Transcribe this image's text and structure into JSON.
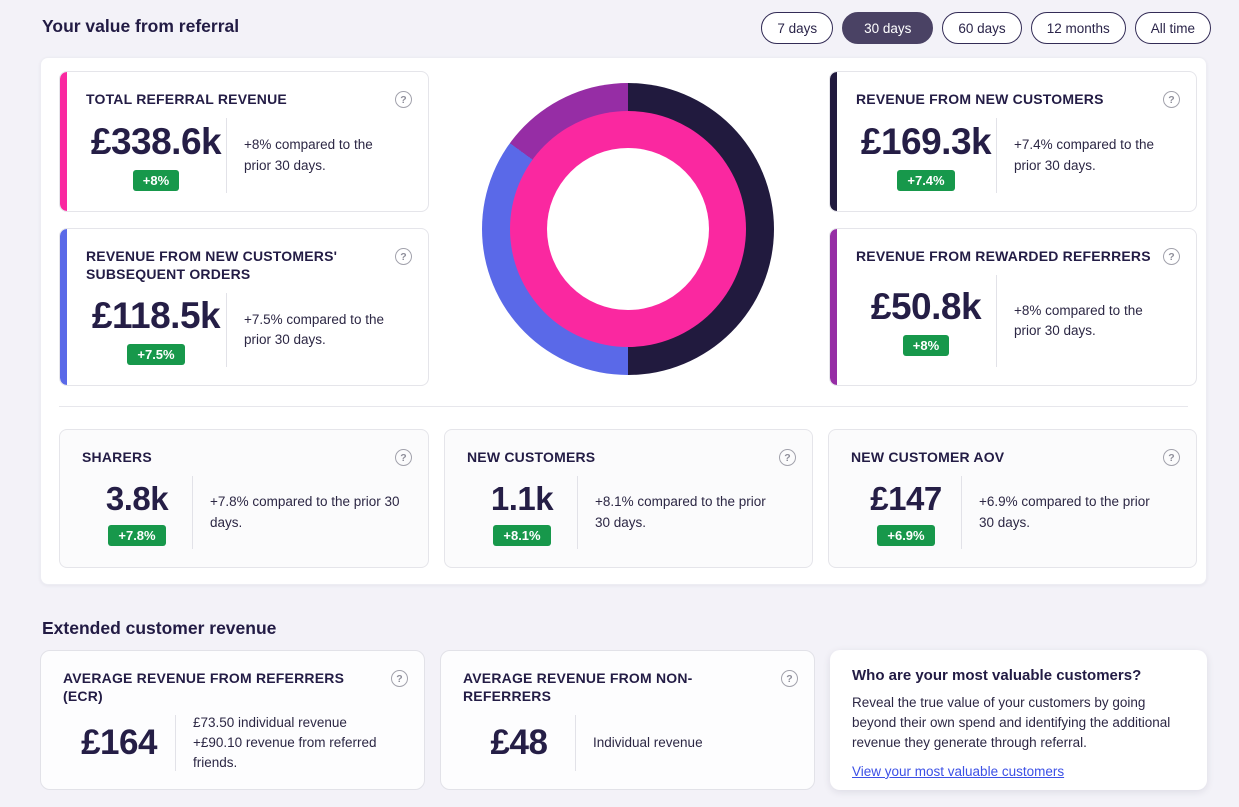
{
  "header": {
    "title": "Your value from referral"
  },
  "filters": {
    "items": [
      {
        "label": "7 days",
        "selected": false
      },
      {
        "label": "30 days",
        "selected": true
      },
      {
        "label": "60 days",
        "selected": false
      },
      {
        "label": "12 months",
        "selected": false
      },
      {
        "label": "All time",
        "selected": false
      }
    ]
  },
  "icons": {
    "help": "?"
  },
  "colors": {
    "page_bg": "#F3F2F8",
    "card_bg": "#FFFFFF",
    "accent_pink": "#FA28A0",
    "accent_navy": "#211A3E",
    "accent_blue": "#5A69E8",
    "accent_purple": "#962DA5",
    "badge_green": "#17984B",
    "text_dark": "#231C45",
    "link_blue": "#3C50E6",
    "pill_selected_bg": "#4A4264"
  },
  "main_metrics": {
    "total_referral_revenue": {
      "title": "TOTAL REFERRAL REVENUE",
      "value": "£338.6k",
      "badge": "+8%",
      "desc": "+8% compared to the prior 30 days.",
      "accent": "#FA28A0"
    },
    "revenue_new_customers": {
      "title": "REVENUE FROM NEW CUSTOMERS",
      "value": "£169.3k",
      "badge": "+7.4%",
      "desc": "+7.4% compared to the prior 30 days.",
      "accent": "#211A3E"
    },
    "revenue_subsequent_orders": {
      "title": "REVENUE FROM NEW CUSTOMERS' SUBSEQUENT ORDERS",
      "value": "£118.5k",
      "badge": "+7.5%",
      "desc": "+7.5% compared to the prior 30 days.",
      "accent": "#5A69E8"
    },
    "revenue_rewarded_referrers": {
      "title": "REVENUE FROM REWARDED REFERRERS",
      "value": "£50.8k",
      "badge": "+8%",
      "desc": "+8% compared to the prior 30 days.",
      "accent": "#962DA5"
    }
  },
  "stats": {
    "sharers": {
      "title": "SHARERS",
      "value": "3.8k",
      "badge": "+7.8%",
      "desc": "+7.8% compared to the prior 30 days."
    },
    "new_customers": {
      "title": "NEW CUSTOMERS",
      "value": "1.1k",
      "badge": "+8.1%",
      "desc": "+8.1% compared to the prior 30 days."
    },
    "new_customer_aov": {
      "title": "NEW CUSTOMER AOV",
      "value": "£147",
      "badge": "+6.9%",
      "desc": "+6.9% compared to the prior 30 days."
    }
  },
  "extended": {
    "heading": "Extended customer revenue",
    "avg_revenue_referrers": {
      "title": "AVERAGE REVENUE FROM REFERRERS (ECR)",
      "value": "£164",
      "desc_line1": "£73.50 individual revenue",
      "desc_line2": "+£90.10 revenue from referred friends."
    },
    "avg_revenue_non_referrers": {
      "title": "AVERAGE REVENUE FROM NON-REFERRERS",
      "value": "£48",
      "desc": "Individual revenue"
    },
    "info_card": {
      "heading": "Who are your most valuable customers?",
      "body": "Reveal the true value of your customers by going beyond their own spend and identifying the additional revenue they generate through referral.",
      "link": "View your most valuable customers"
    }
  },
  "chart_data": {
    "type": "pie",
    "donut": true,
    "unit": "£k",
    "legend_position": "none",
    "rings": [
      {
        "name": "outer",
        "segments": [
          {
            "label": "Revenue from new customers",
            "value": 169.3,
            "pct": 50,
            "color": "#211A3E"
          },
          {
            "label": "Revenue from new customers' subsequent orders",
            "value": 118.5,
            "pct": 35,
            "color": "#5A69E8"
          },
          {
            "label": "Revenue from rewarded referrers",
            "value": 50.8,
            "pct": 15,
            "color": "#962DA5"
          }
        ]
      },
      {
        "name": "inner",
        "segments": [
          {
            "label": "Total referral revenue",
            "value": 338.6,
            "pct": 100,
            "color": "#FA28A0"
          }
        ]
      }
    ]
  }
}
